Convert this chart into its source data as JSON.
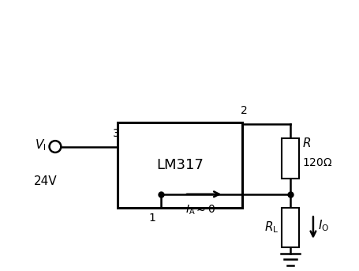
{
  "background_color": "#ffffff",
  "line_color": "#000000",
  "lw": 1.8
}
